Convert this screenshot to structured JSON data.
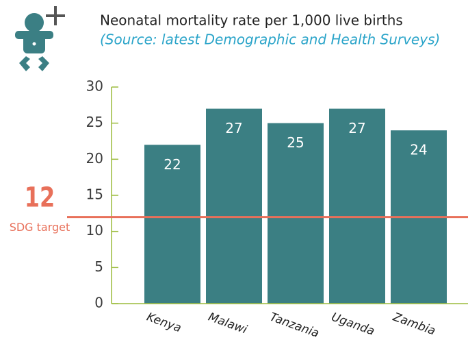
{
  "chart_data": {
    "type": "bar",
    "title": "Neonatal mortality rate per 1,000 live births",
    "subtitle": "(Source: latest Demographic and Health Surveys)",
    "categories": [
      "Kenya",
      "Malawi",
      "Tanzania",
      "Uganda",
      "Zambia"
    ],
    "values": [
      22,
      27,
      25,
      27,
      24
    ],
    "color": "#3b7f83",
    "ylim": [
      0,
      30
    ],
    "yticks": [
      0,
      5,
      10,
      15,
      20,
      25,
      30
    ],
    "target": {
      "value": 12,
      "label": "SDG target",
      "color": "#e8705a"
    }
  }
}
